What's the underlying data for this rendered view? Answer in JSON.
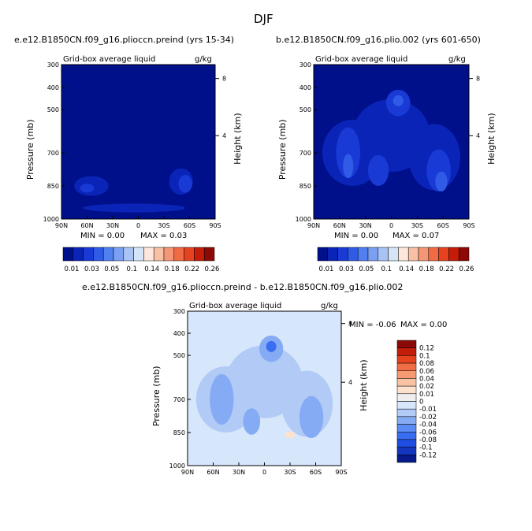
{
  "figure": {
    "title": "DJF"
  },
  "colors": {
    "palette_abs": [
      "#000f8a",
      "#0a24b8",
      "#1a3ad6",
      "#2f5be6",
      "#4f7ff0",
      "#7ba0f3",
      "#aac3f5",
      "#d6e4f8",
      "#fde7dd",
      "#f8c1a6",
      "#f59777",
      "#f06a44",
      "#e74220",
      "#c41c08",
      "#8c0a05"
    ],
    "palette_diff": [
      "#081a8a",
      "#1236be",
      "#1f4ee2",
      "#3a6ef0",
      "#5a8cf3",
      "#85abf5",
      "#b2caf6",
      "#d6e6fb",
      "#eeeeee",
      "#fde1cf",
      "#f9c2a3",
      "#f59a73",
      "#f06d45",
      "#e5431e",
      "#c41d09",
      "#8c0a05"
    ]
  },
  "chart_data": [
    {
      "type": "heatmap",
      "name": "panel-preind",
      "title": "e.e12.B1850CN.f09_g16.plioccn.preind (yrs 15-34)",
      "left_label": "Grid-box average liquid",
      "right_label": "g/kg",
      "ylabel": "Pressure (mb)",
      "ylabel_right": "Height (km)",
      "xticks": [
        "90N",
        "60N",
        "30N",
        "0",
        "30S",
        "60S",
        "90S"
      ],
      "yticks": [
        "300",
        "400",
        "500",
        "700",
        "850",
        "1000"
      ],
      "yticks_right": [
        "8",
        "4"
      ],
      "min_label": "MIN = 0.00",
      "max_label": "MAX = 0.03",
      "colorbar_labels": [
        "0.01",
        "0.03",
        "0.05",
        "0.1",
        "0.14",
        "0.18",
        "0.22",
        "0.26"
      ],
      "background_level": 0,
      "features": [
        {
          "lat": -50,
          "p": 830,
          "rx": 14,
          "ry": 120,
          "level": 1
        },
        {
          "lat": -55,
          "p": 840,
          "rx": 8,
          "ry": 80,
          "level": 2
        },
        {
          "lat": 55,
          "p": 850,
          "rx": 20,
          "ry": 90,
          "level": 1
        },
        {
          "lat": 60,
          "p": 860,
          "rx": 8,
          "ry": 40,
          "level": 2
        },
        {
          "lat": 5,
          "p": 950,
          "rx": 60,
          "ry": 40,
          "level": 1
        }
      ]
    },
    {
      "type": "heatmap",
      "name": "panel-plio",
      "title": "b.e12.B1850CN.f09_g16.plio.002 (yrs 601-650)",
      "left_label": "Grid-box average liquid",
      "right_label": "g/kg",
      "ylabel": "Pressure (mb)",
      "ylabel_right": "Height (km)",
      "xticks": [
        "90N",
        "60N",
        "30N",
        "0",
        "30S",
        "60S",
        "90S"
      ],
      "yticks": [
        "300",
        "400",
        "500",
        "700",
        "850",
        "1000"
      ],
      "yticks_right": [
        "8",
        "4"
      ],
      "min_label": "MIN = 0.00",
      "max_label": "MAX = 0.07",
      "colorbar_labels": [
        "0.01",
        "0.03",
        "0.05",
        "0.1",
        "0.14",
        "0.18",
        "0.22",
        "0.26"
      ],
      "background_level": 0,
      "features": [
        {
          "lat": 0,
          "p": 620,
          "rx": 45,
          "ry": 330,
          "level": 1
        },
        {
          "lat": 45,
          "p": 700,
          "rx": 35,
          "ry": 300,
          "level": 1
        },
        {
          "lat": -50,
          "p": 720,
          "rx": 30,
          "ry": 300,
          "level": 1
        },
        {
          "lat": -8,
          "p": 470,
          "rx": 14,
          "ry": 120,
          "level": 2
        },
        {
          "lat": -8,
          "p": 460,
          "rx": 6,
          "ry": 50,
          "level": 3
        },
        {
          "lat": 50,
          "p": 700,
          "rx": 14,
          "ry": 230,
          "level": 2
        },
        {
          "lat": 50,
          "p": 760,
          "rx": 6,
          "ry": 110,
          "level": 3
        },
        {
          "lat": -55,
          "p": 780,
          "rx": 14,
          "ry": 190,
          "level": 2
        },
        {
          "lat": -58,
          "p": 830,
          "rx": 7,
          "ry": 90,
          "level": 3
        },
        {
          "lat": 15,
          "p": 780,
          "rx": 12,
          "ry": 140,
          "level": 2
        }
      ]
    },
    {
      "type": "heatmap",
      "name": "panel-diff",
      "title": "e.e12.B1850CN.f09_g16.plioccn.preind - b.e12.B1850CN.f09_g16.plio.002",
      "left_label": "Grid-box average liquid",
      "right_label": "g/kg",
      "ylabel": "Pressure (mb)",
      "ylabel_right": "Height (km)",
      "xticks": [
        "90N",
        "60N",
        "30N",
        "0",
        "30S",
        "60S",
        "90S"
      ],
      "yticks": [
        "300",
        "400",
        "500",
        "700",
        "850",
        "1000"
      ],
      "yticks_right": [
        "8",
        "4"
      ],
      "min_label": "MIN = -0.06",
      "max_label": "MAX = 0.00",
      "colorbar_labels": [
        "0.12",
        "0.1",
        "0.08",
        "0.06",
        "0.04",
        "0.02",
        "0.01",
        "0",
        "-0.01",
        "-0.02",
        "-0.04",
        "-0.06",
        "-0.08",
        "-0.1",
        "-0.12"
      ],
      "background_level": 7,
      "features": [
        {
          "lat": 0,
          "p": 620,
          "rx": 45,
          "ry": 330,
          "level": 6
        },
        {
          "lat": 45,
          "p": 700,
          "rx": 35,
          "ry": 300,
          "level": 6
        },
        {
          "lat": -50,
          "p": 720,
          "rx": 30,
          "ry": 300,
          "level": 6
        },
        {
          "lat": -8,
          "p": 470,
          "rx": 14,
          "ry": 120,
          "level": 5
        },
        {
          "lat": -8,
          "p": 460,
          "rx": 6,
          "ry": 50,
          "level": 3
        },
        {
          "lat": 50,
          "p": 700,
          "rx": 14,
          "ry": 230,
          "level": 5
        },
        {
          "lat": -55,
          "p": 780,
          "rx": 14,
          "ry": 190,
          "level": 5
        },
        {
          "lat": 15,
          "p": 800,
          "rx": 10,
          "ry": 120,
          "level": 5
        },
        {
          "lat": -30,
          "p": 860,
          "rx": 6,
          "ry": 30,
          "level": 9
        }
      ]
    }
  ]
}
